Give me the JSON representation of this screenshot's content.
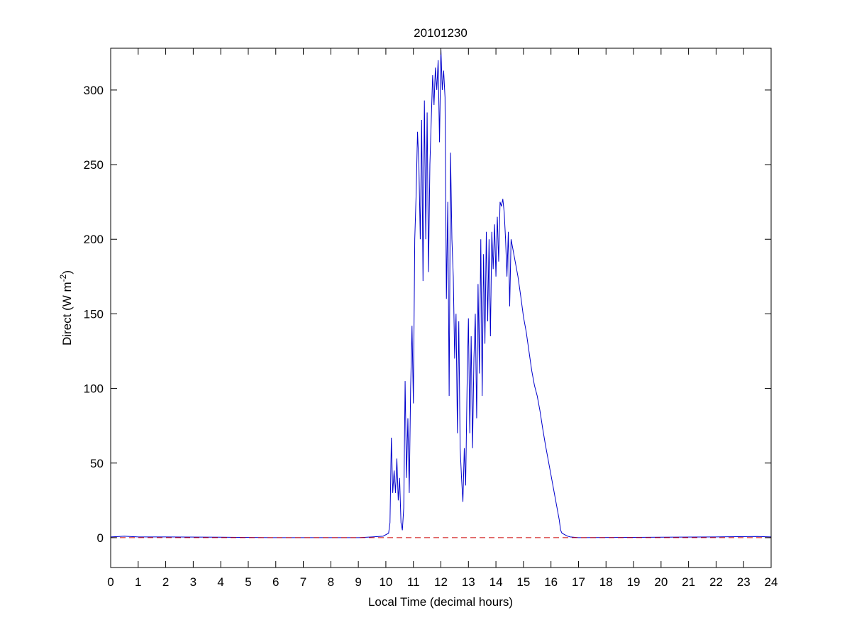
{
  "chart_data": {
    "type": "line",
    "title": "20101230",
    "xlabel": "Local Time (decimal hours)",
    "ylabel": [
      "Direct (W m",
      "-2",
      ")"
    ],
    "xlim": [
      0,
      24
    ],
    "xticks": [
      0,
      1,
      2,
      3,
      4,
      5,
      6,
      7,
      8,
      9,
      10,
      11,
      12,
      13,
      14,
      15,
      16,
      17,
      18,
      19,
      20,
      21,
      22,
      23,
      24
    ],
    "ylim": [
      -20,
      328
    ],
    "yticks": [
      0,
      50,
      100,
      150,
      200,
      250,
      300
    ],
    "series": [
      {
        "color": "#0000cc",
        "dash": false,
        "x": [
          0,
          0.5,
          1,
          2,
          4,
          6,
          9,
          9.5,
          9.9,
          10.1,
          10.15,
          10.2,
          10.25,
          10.3,
          10.35,
          10.4,
          10.45,
          10.5,
          10.55,
          10.6,
          10.65,
          10.7,
          10.75,
          10.8,
          10.85,
          10.9,
          10.95,
          11,
          11.05,
          11.1,
          11.15,
          11.2,
          11.25,
          11.3,
          11.35,
          11.4,
          11.45,
          11.5,
          11.55,
          11.6,
          11.65,
          11.7,
          11.75,
          11.8,
          11.85,
          11.9,
          11.95,
          12,
          12.05,
          12.1,
          12.15,
          12.2,
          12.25,
          12.3,
          12.35,
          12.4,
          12.45,
          12.5,
          12.55,
          12.6,
          12.65,
          12.7,
          12.75,
          12.8,
          12.85,
          12.9,
          12.95,
          13,
          13.05,
          13.1,
          13.15,
          13.2,
          13.25,
          13.3,
          13.35,
          13.4,
          13.45,
          13.5,
          13.55,
          13.6,
          13.65,
          13.7,
          13.75,
          13.8,
          13.85,
          13.9,
          13.95,
          14,
          14.05,
          14.1,
          14.15,
          14.2,
          14.25,
          14.3,
          14.35,
          14.4,
          14.45,
          14.5,
          14.55,
          14.6,
          14.7,
          14.8,
          14.9,
          15,
          15.1,
          15.2,
          15.3,
          15.4,
          15.5,
          15.6,
          15.7,
          15.8,
          15.9,
          16,
          16.1,
          16.2,
          16.3,
          16.35,
          16.4,
          16.5,
          16.6,
          16.7,
          17,
          20,
          22,
          23.5,
          24
        ],
        "values": [
          0.5,
          1,
          0.5,
          0.5,
          0.3,
          0,
          0,
          0.5,
          1,
          3,
          10,
          67,
          30,
          45,
          30,
          53,
          25,
          40,
          10,
          5,
          20,
          105,
          40,
          80,
          30,
          100,
          142,
          90,
          200,
          230,
          272,
          250,
          200,
          280,
          172,
          293,
          200,
          285,
          178,
          250,
          280,
          310,
          290,
          315,
          300,
          320,
          265,
          328,
          300,
          313,
          295,
          160,
          225,
          95,
          258,
          200,
          175,
          120,
          150,
          70,
          145,
          60,
          40,
          24,
          60,
          35,
          100,
          147,
          70,
          135,
          60,
          120,
          150,
          80,
          170,
          110,
          200,
          95,
          190,
          130,
          205,
          145,
          200,
          135,
          205,
          180,
          210,
          175,
          215,
          185,
          225,
          222,
          227,
          218,
          200,
          175,
          205,
          155,
          200,
          195,
          185,
          175,
          162,
          148,
          138,
          125,
          112,
          102,
          95,
          85,
          73,
          62,
          52,
          42,
          32,
          22,
          12,
          5,
          3,
          2,
          1,
          0.5,
          0,
          0.3,
          0.5,
          0.8,
          0.5
        ]
      },
      {
        "color": "#cc0000",
        "dash": true,
        "x": [
          0,
          24
        ],
        "values": [
          0,
          0
        ]
      }
    ]
  }
}
